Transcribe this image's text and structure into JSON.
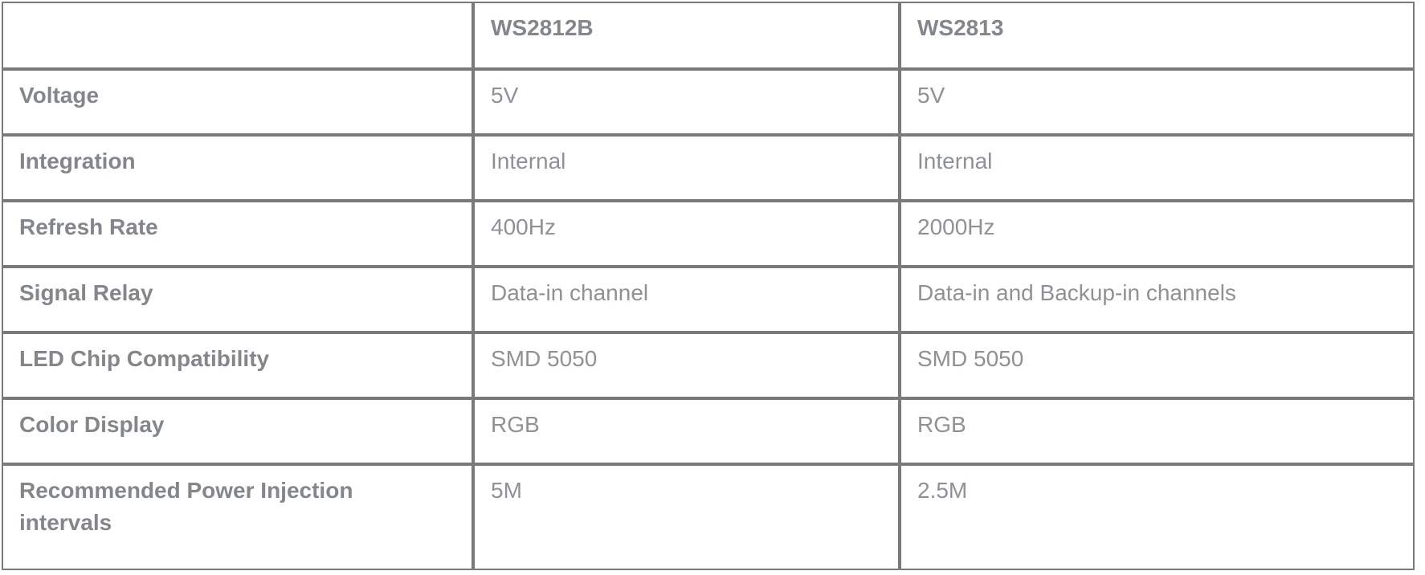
{
  "table": {
    "columns": [
      "",
      "WS2812B",
      "WS2813"
    ],
    "rows": [
      {
        "label": "Voltage",
        "ws2812b": "5V",
        "ws2813": "5V"
      },
      {
        "label": "Integration",
        "ws2812b": "Internal",
        "ws2813": "Internal"
      },
      {
        "label": "Refresh Rate",
        "ws2812b": "400Hz",
        "ws2813": "2000Hz"
      },
      {
        "label": "Signal Relay",
        "ws2812b": "Data-in channel",
        "ws2813": "Data-in and Backup-in channels"
      },
      {
        "label": "LED Chip Compatibility",
        "ws2812b": "SMD 5050",
        "ws2813": "SMD 5050"
      },
      {
        "label": "Color Display",
        "ws2812b": "RGB",
        "ws2813": "RGB"
      },
      {
        "label": "Recommended Power Injection intervals",
        "ws2812b": "5M",
        "ws2813": "2.5M"
      }
    ],
    "colors": {
      "border": "#7a7a7c",
      "label_text": "#83868b",
      "value_text": "#8e9196",
      "background": "#ffffff"
    }
  }
}
